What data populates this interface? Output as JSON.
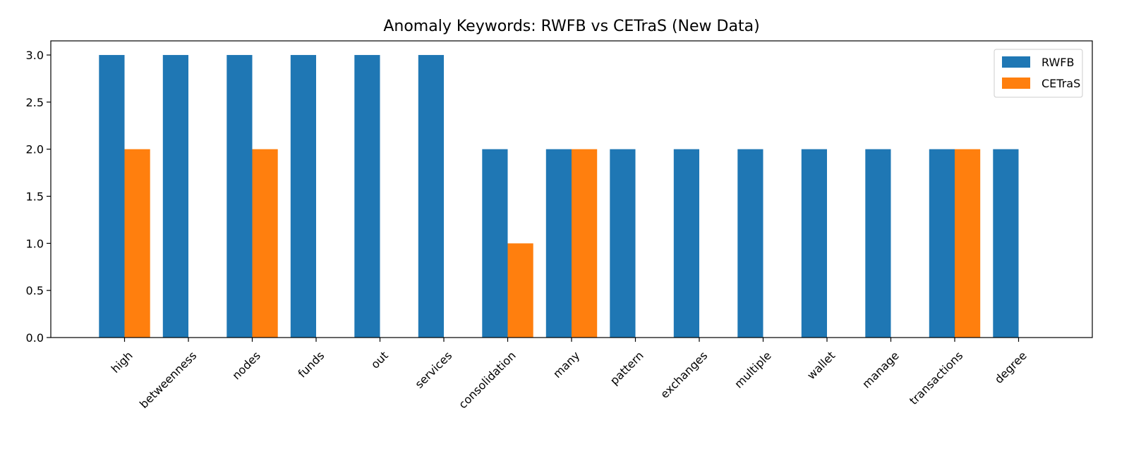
{
  "chart_data": {
    "type": "bar",
    "title": "Anomaly Keywords: RWFB vs CETraS (New Data)",
    "xlabel": "",
    "ylabel": "",
    "categories": [
      "high",
      "betweenness",
      "nodes",
      "funds",
      "out",
      "services",
      "consolidation",
      "many",
      "pattern",
      "exchanges",
      "multiple",
      "wallet",
      "manage",
      "transactions",
      "degree"
    ],
    "series": [
      {
        "name": "RWFB",
        "color": "#1f77b4",
        "values": [
          3,
          3,
          3,
          3,
          3,
          3,
          2,
          2,
          2,
          2,
          2,
          2,
          2,
          2,
          2
        ]
      },
      {
        "name": "CETraS",
        "color": "#ff7f0e",
        "values": [
          2,
          0,
          2,
          0,
          0,
          0,
          1,
          2,
          0,
          0,
          0,
          0,
          0,
          2,
          0
        ]
      }
    ],
    "ylim": [
      0,
      3.15
    ],
    "yticks": [
      "0.0",
      "0.5",
      "1.0",
      "1.5",
      "2.0",
      "2.5",
      "3.0"
    ],
    "grid": false,
    "legend_position": "top-right"
  }
}
